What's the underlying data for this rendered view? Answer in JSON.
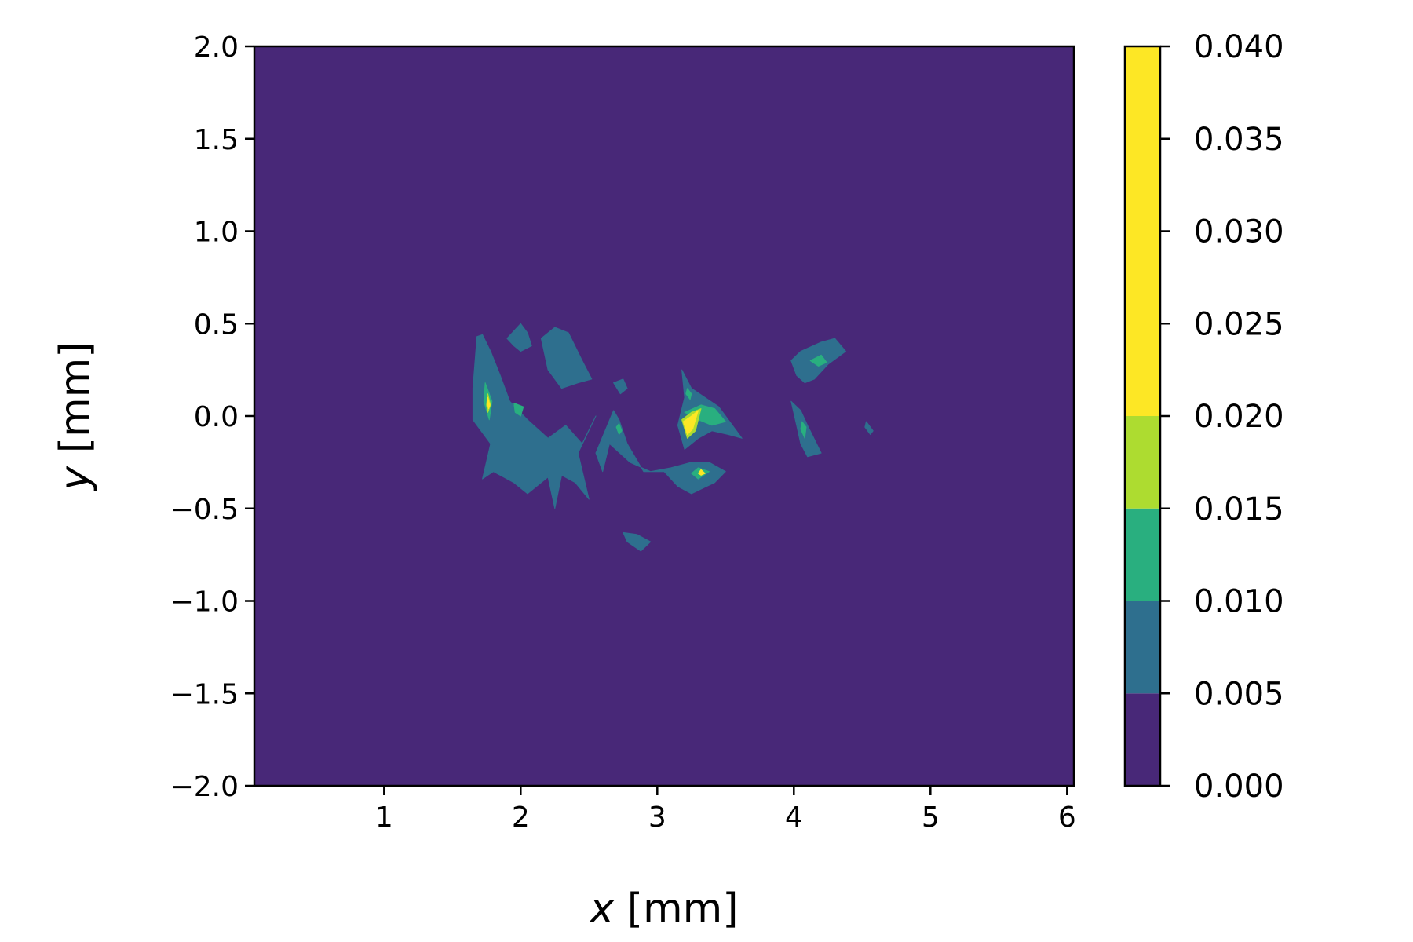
{
  "chart_data": {
    "type": "contourf",
    "xlabel_var": "x",
    "xlabel_unit": " [mm]",
    "ylabel_var": "y",
    "ylabel_unit": " [mm]",
    "xlim": [
      0.05,
      6.05
    ],
    "ylim": [
      -2.0,
      2.0
    ],
    "xticks": [
      1,
      2,
      3,
      4,
      5,
      6
    ],
    "xtick_labels": [
      "1",
      "2",
      "3",
      "4",
      "5",
      "6"
    ],
    "yticks": [
      2.0,
      1.5,
      1.0,
      0.5,
      0.0,
      -0.5,
      -1.0,
      -1.5,
      -2.0
    ],
    "ytick_labels": [
      "2.0",
      "1.5",
      "1.0",
      "0.5",
      "0.0",
      "−0.5",
      "−1.0",
      "−1.5",
      "−2.0"
    ],
    "colorbar": {
      "levels": [
        0.0,
        0.005,
        0.01,
        0.015,
        0.02,
        0.04
      ],
      "tick_values": [
        0.0,
        0.005,
        0.01,
        0.015,
        0.02,
        0.025,
        0.03,
        0.035,
        0.04
      ],
      "tick_labels": [
        "0.000",
        "0.005",
        "0.010",
        "0.015",
        "0.020",
        "0.025",
        "0.030",
        "0.035",
        "0.040"
      ],
      "colors": [
        "#482878",
        "#2e6f8e",
        "#29af7f",
        "#addc30",
        "#fde725"
      ]
    },
    "regions": [
      {
        "level": 1,
        "points": [
          [
            1.68,
            0.43
          ],
          [
            1.72,
            0.44
          ],
          [
            1.78,
            0.35
          ],
          [
            1.85,
            0.22
          ],
          [
            1.92,
            0.08
          ],
          [
            2.05,
            -0.02
          ],
          [
            2.2,
            -0.12
          ],
          [
            2.33,
            -0.05
          ],
          [
            2.45,
            -0.15
          ],
          [
            2.55,
            0.0
          ],
          [
            2.42,
            -0.2
          ],
          [
            2.5,
            -0.45
          ],
          [
            2.4,
            -0.36
          ],
          [
            2.3,
            -0.32
          ],
          [
            2.25,
            -0.5
          ],
          [
            2.2,
            -0.33
          ],
          [
            2.05,
            -0.42
          ],
          [
            1.95,
            -0.36
          ],
          [
            1.8,
            -0.3
          ],
          [
            1.72,
            -0.34
          ],
          [
            1.78,
            -0.15
          ],
          [
            1.65,
            -0.02
          ],
          [
            1.65,
            0.15
          ]
        ]
      },
      {
        "level": 1,
        "points": [
          [
            1.9,
            0.42
          ],
          [
            2.0,
            0.5
          ],
          [
            2.05,
            0.45
          ],
          [
            2.08,
            0.38
          ],
          [
            2.0,
            0.35
          ],
          [
            1.95,
            0.38
          ]
        ]
      },
      {
        "level": 1,
        "points": [
          [
            2.15,
            0.42
          ],
          [
            2.25,
            0.48
          ],
          [
            2.35,
            0.45
          ],
          [
            2.45,
            0.3
          ],
          [
            2.52,
            0.2
          ],
          [
            2.42,
            0.18
          ],
          [
            2.3,
            0.15
          ],
          [
            2.2,
            0.25
          ]
        ]
      },
      {
        "level": 1,
        "points": [
          [
            2.68,
            0.18
          ],
          [
            2.75,
            0.2
          ],
          [
            2.78,
            0.15
          ],
          [
            2.73,
            0.12
          ]
        ]
      },
      {
        "level": 1,
        "points": [
          [
            2.68,
            0.03
          ],
          [
            2.72,
            -0.02
          ],
          [
            2.78,
            -0.15
          ],
          [
            2.9,
            -0.3
          ],
          [
            3.05,
            -0.3
          ],
          [
            3.15,
            -0.38
          ],
          [
            3.25,
            -0.42
          ],
          [
            3.42,
            -0.36
          ],
          [
            3.5,
            -0.3
          ],
          [
            3.38,
            -0.25
          ],
          [
            3.25,
            -0.25
          ],
          [
            3.1,
            -0.28
          ],
          [
            2.95,
            -0.3
          ],
          [
            2.8,
            -0.25
          ],
          [
            2.65,
            -0.15
          ],
          [
            2.6,
            -0.3
          ],
          [
            2.55,
            -0.2
          ]
        ]
      },
      {
        "level": 1,
        "points": [
          [
            3.18,
            0.25
          ],
          [
            3.25,
            0.15
          ],
          [
            3.35,
            0.1
          ],
          [
            3.45,
            0.05
          ],
          [
            3.55,
            -0.05
          ],
          [
            3.62,
            -0.12
          ],
          [
            3.52,
            -0.1
          ],
          [
            3.4,
            -0.08
          ],
          [
            3.3,
            -0.12
          ],
          [
            3.2,
            -0.18
          ],
          [
            3.15,
            -0.05
          ],
          [
            3.2,
            0.1
          ]
        ]
      },
      {
        "level": 1,
        "points": [
          [
            2.85,
            -0.64
          ],
          [
            2.95,
            -0.68
          ],
          [
            2.88,
            -0.73
          ],
          [
            2.78,
            -0.68
          ],
          [
            2.75,
            -0.63
          ]
        ]
      },
      {
        "level": 1,
        "points": [
          [
            3.98,
            0.3
          ],
          [
            4.05,
            0.35
          ],
          [
            4.2,
            0.4
          ],
          [
            4.3,
            0.42
          ],
          [
            4.38,
            0.35
          ],
          [
            4.25,
            0.28
          ],
          [
            4.15,
            0.2
          ],
          [
            4.08,
            0.18
          ],
          [
            4.02,
            0.22
          ]
        ]
      },
      {
        "level": 1,
        "points": [
          [
            3.98,
            0.08
          ],
          [
            4.05,
            0.03
          ],
          [
            4.1,
            -0.05
          ],
          [
            4.2,
            -0.2
          ],
          [
            4.1,
            -0.22
          ],
          [
            4.05,
            -0.15
          ],
          [
            4.02,
            -0.05
          ]
        ]
      },
      {
        "level": 1,
        "points": [
          [
            4.53,
            -0.03
          ],
          [
            4.58,
            -0.08
          ],
          [
            4.56,
            -0.1
          ],
          [
            4.52,
            -0.06
          ]
        ]
      },
      {
        "level": 2,
        "points": [
          [
            1.74,
            0.18
          ],
          [
            1.79,
            0.08
          ],
          [
            1.77,
            -0.02
          ],
          [
            1.73,
            0.08
          ]
        ]
      },
      {
        "level": 2,
        "points": [
          [
            1.95,
            0.07
          ],
          [
            2.02,
            0.05
          ],
          [
            2.0,
            0.0
          ],
          [
            1.96,
            0.02
          ]
        ]
      },
      {
        "level": 2,
        "points": [
          [
            3.22,
            0.15
          ],
          [
            3.25,
            0.12
          ],
          [
            3.24,
            0.09
          ],
          [
            3.21,
            0.12
          ]
        ]
      },
      {
        "level": 2,
        "points": [
          [
            3.2,
            0.02
          ],
          [
            3.32,
            0.06
          ],
          [
            3.42,
            0.04
          ],
          [
            3.5,
            -0.03
          ],
          [
            3.4,
            -0.05
          ],
          [
            3.3,
            -0.02
          ]
        ]
      },
      {
        "level": 2,
        "points": [
          [
            3.3,
            -0.28
          ],
          [
            3.38,
            -0.3
          ],
          [
            3.3,
            -0.34
          ],
          [
            3.25,
            -0.31
          ]
        ]
      },
      {
        "level": 2,
        "points": [
          [
            4.12,
            0.3
          ],
          [
            4.2,
            0.33
          ],
          [
            4.24,
            0.29
          ],
          [
            4.18,
            0.27
          ]
        ]
      },
      {
        "level": 2,
        "points": [
          [
            4.06,
            -0.03
          ],
          [
            4.09,
            -0.06
          ],
          [
            4.08,
            -0.12
          ],
          [
            4.05,
            -0.07
          ]
        ]
      },
      {
        "level": 2,
        "points": [
          [
            2.72,
            -0.04
          ],
          [
            2.74,
            -0.08
          ],
          [
            2.72,
            -0.1
          ],
          [
            2.7,
            -0.06
          ]
        ]
      },
      {
        "level": 3,
        "points": [
          [
            1.76,
            0.12
          ],
          [
            1.78,
            0.06
          ],
          [
            1.76,
            0.02
          ],
          [
            1.75,
            0.06
          ]
        ]
      },
      {
        "level": 3,
        "points": [
          [
            3.18,
            -0.02
          ],
          [
            3.25,
            0.02
          ],
          [
            3.32,
            0.04
          ],
          [
            3.28,
            -0.08
          ],
          [
            3.22,
            -0.12
          ]
        ]
      },
      {
        "level": 4,
        "points": [
          [
            3.19,
            -0.03
          ],
          [
            3.25,
            0.0
          ],
          [
            3.3,
            0.03
          ],
          [
            3.26,
            -0.07
          ],
          [
            3.22,
            -0.1
          ]
        ]
      },
      {
        "level": 4,
        "points": [
          [
            1.76,
            0.1
          ],
          [
            1.775,
            0.06
          ],
          [
            1.765,
            0.04
          ],
          [
            1.755,
            0.07
          ]
        ]
      },
      {
        "level": 4,
        "points": [
          [
            3.32,
            -0.29
          ],
          [
            3.35,
            -0.31
          ],
          [
            3.32,
            -0.32
          ],
          [
            3.3,
            -0.31
          ]
        ]
      }
    ]
  }
}
